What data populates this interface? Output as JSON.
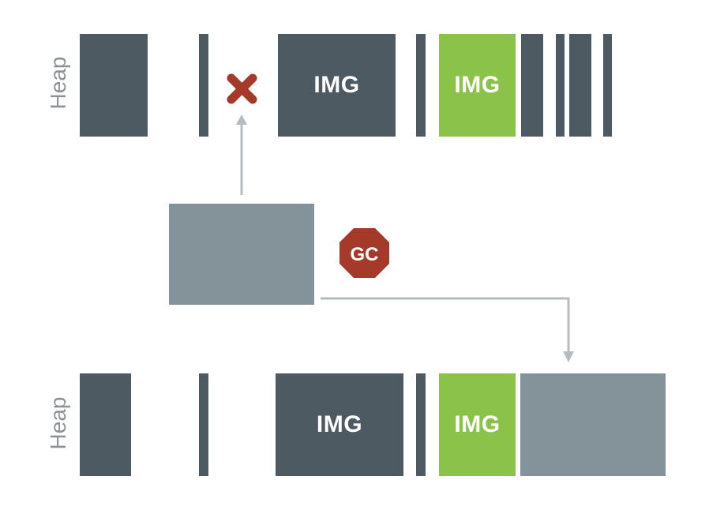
{
  "top_heap": {
    "label": "Heap",
    "img_dark_label": "IMG",
    "img_green_label": "IMG"
  },
  "bottom_heap": {
    "label": "Heap",
    "img_dark_label": "IMG",
    "img_green_label": "IMG"
  },
  "gc_badge": {
    "label": "GC",
    "color": "#a63a2a"
  },
  "removed_marker": {
    "icon": "x-mark-icon",
    "color": "#a63a2a"
  },
  "colors": {
    "dark_block": "#4e5a61",
    "green_block": "#8bc34a",
    "moved_block": "#849399",
    "arrow": "#b5bcbf",
    "heap_label": "#8a9296"
  }
}
